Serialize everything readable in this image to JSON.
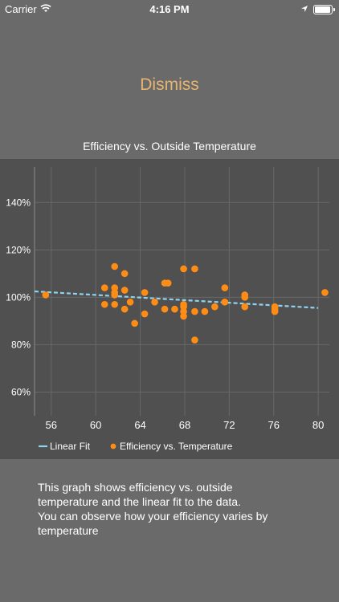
{
  "status_bar": {
    "carrier": "Carrier",
    "time": "4:16 PM"
  },
  "dismiss_label": "Dismiss",
  "chart_data": {
    "type": "scatter",
    "title": "Efficiency vs. Outside Temperature",
    "xlim": [
      54.5,
      81
    ],
    "ylim": [
      50,
      155
    ],
    "x_ticks": [
      56,
      60,
      64,
      68,
      72,
      76,
      80
    ],
    "y_ticks": [
      60,
      80,
      100,
      120,
      140
    ],
    "y_tick_labels": [
      "60%",
      "80%",
      "100%",
      "120%",
      "140%"
    ],
    "grid": true,
    "legend_position": "bottom-left",
    "series": [
      {
        "name": "Linear Fit",
        "kind": "line",
        "style": "dashed",
        "color": "#8fd3f0",
        "x": [
          54.5,
          80
        ],
        "y": [
          102.5,
          95.5
        ]
      },
      {
        "name": "Efficiency vs. Temperature",
        "kind": "scatter",
        "color": "#ff8c14",
        "points": [
          [
            55.5,
            101
          ],
          [
            60.8,
            104
          ],
          [
            60.8,
            97
          ],
          [
            61.7,
            113
          ],
          [
            61.7,
            104
          ],
          [
            61.7,
            102
          ],
          [
            61.7,
            101
          ],
          [
            61.7,
            97
          ],
          [
            62.6,
            110
          ],
          [
            62.6,
            103
          ],
          [
            62.6,
            95
          ],
          [
            63.1,
            98
          ],
          [
            63.5,
            89
          ],
          [
            64.4,
            102
          ],
          [
            64.4,
            93
          ],
          [
            65.3,
            98
          ],
          [
            66.2,
            106
          ],
          [
            66.5,
            106
          ],
          [
            66.2,
            95
          ],
          [
            67.1,
            95
          ],
          [
            67.9,
            112
          ],
          [
            67.9,
            97
          ],
          [
            67.9,
            96
          ],
          [
            67.9,
            94
          ],
          [
            67.9,
            92
          ],
          [
            68.9,
            112
          ],
          [
            68.9,
            94
          ],
          [
            68.9,
            82
          ],
          [
            69.8,
            94
          ],
          [
            70.7,
            96
          ],
          [
            71.6,
            104
          ],
          [
            71.6,
            98
          ],
          [
            73.4,
            101
          ],
          [
            73.4,
            100
          ],
          [
            73.4,
            96
          ],
          [
            76.1,
            96
          ],
          [
            76.1,
            95
          ],
          [
            76.1,
            94
          ],
          [
            80.6,
            102
          ]
        ]
      }
    ]
  },
  "description": {
    "lines": [
      "This graph shows efficiency vs. outside",
      "temperature and the linear fit to the data.",
      "You can observe how your efficiency varies by",
      "temperature"
    ]
  }
}
